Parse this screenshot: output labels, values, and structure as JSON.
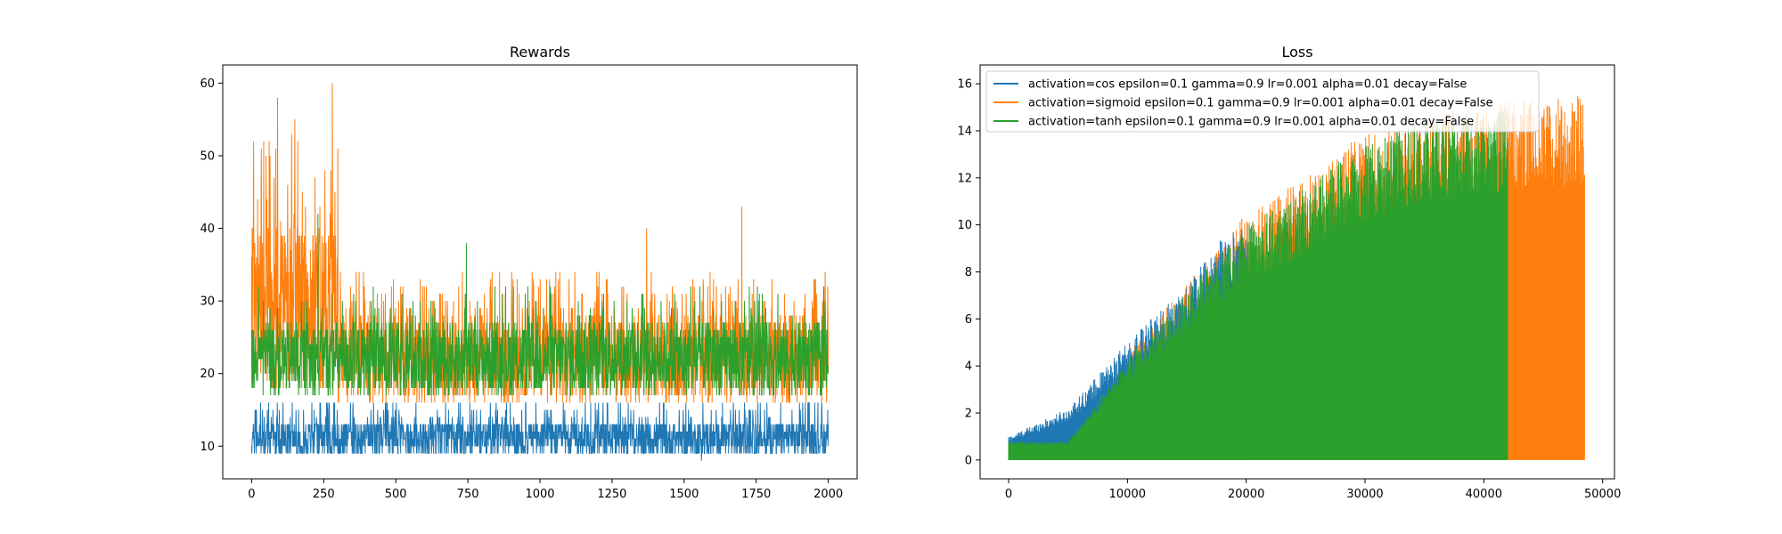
{
  "colors": {
    "blue": "#1f77b4",
    "orange": "#ff7f0e",
    "green": "#2ca02c"
  },
  "chart_data": [
    {
      "type": "line",
      "title": "Rewards",
      "xlabel": "",
      "ylabel": "",
      "xlim": [
        -100,
        2100
      ],
      "ylim": [
        5.5,
        62.5
      ],
      "x_ticks": [
        0,
        250,
        500,
        750,
        1000,
        1250,
        1500,
        1750,
        2000
      ],
      "y_ticks": [
        10,
        20,
        30,
        40,
        50,
        60
      ],
      "grid": false,
      "legend": false,
      "episodes": 2000,
      "series": [
        {
          "color": "blue",
          "summary": "noisy between ~9 and ~16 across all episodes, mean ~11",
          "min": 8,
          "max": 17,
          "typical_range": [
            9,
            16
          ]
        },
        {
          "color": "orange",
          "summary": "spikes early (peak 60 near episode 280), then fluctuates ~15-35",
          "peak": {
            "x": 280,
            "y": 60
          },
          "early_range": [
            15,
            58
          ],
          "late_range": [
            15,
            35
          ],
          "notable_spikes": [
            {
              "x": 90,
              "y": 58
            },
            {
              "x": 150,
              "y": 55
            },
            {
              "x": 1370,
              "y": 40
            },
            {
              "x": 1700,
              "y": 43
            }
          ]
        },
        {
          "color": "green",
          "summary": "fluctuates ~16-30 across all episodes",
          "typical_range": [
            16,
            30
          ],
          "notable_spikes": [
            {
              "x": 745,
              "y": 38
            },
            {
              "x": 230,
              "y": 42
            }
          ]
        }
      ]
    },
    {
      "type": "line",
      "title": "Loss",
      "xlabel": "",
      "ylabel": "",
      "xlim": [
        -2400,
        51000
      ],
      "ylim": [
        -0.8,
        16.8
      ],
      "x_ticks": [
        0,
        10000,
        20000,
        30000,
        40000,
        50000
      ],
      "y_ticks": [
        0,
        2,
        4,
        6,
        8,
        10,
        12,
        14,
        16
      ],
      "grid": false,
      "legend_position": "upper-left",
      "series": [
        {
          "name": "activation=cos epsilon=0.1 gamma=0.9 lr=0.001 alpha=0.01 decay=False",
          "color": "blue",
          "envelope": [
            [
              0,
              1.0
            ],
            [
              5000,
              2.2
            ],
            [
              10000,
              5.0
            ],
            [
              15000,
              7.5
            ],
            [
              18000,
              9.5
            ],
            [
              20000,
              10.0
            ]
          ],
          "x_end": 20000
        },
        {
          "name": "activation=sigmoid epsilon=0.1 gamma=0.9 lr=0.001 alpha=0.01 decay=False",
          "color": "orange",
          "envelope": [
            [
              0,
              0.9
            ],
            [
              5000,
              0.9
            ],
            [
              10000,
              4.5
            ],
            [
              20000,
              10.5
            ],
            [
              25000,
              12.0
            ],
            [
              30000,
              14.0
            ],
            [
              38000,
              15.0
            ],
            [
              42000,
              15.3
            ],
            [
              48500,
              15.5
            ]
          ],
          "x_end": 48500
        },
        {
          "name": "activation=tanh epsilon=0.1 gamma=0.9 lr=0.001 alpha=0.01 decay=False",
          "color": "green",
          "envelope": [
            [
              0,
              0.8
            ],
            [
              5000,
              0.8
            ],
            [
              10000,
              4.3
            ],
            [
              20000,
              10.0
            ],
            [
              25000,
              11.7
            ],
            [
              30000,
              13.5
            ],
            [
              35000,
              14.5
            ],
            [
              42000,
              15.0
            ]
          ],
          "x_end": 42000
        }
      ]
    }
  ]
}
